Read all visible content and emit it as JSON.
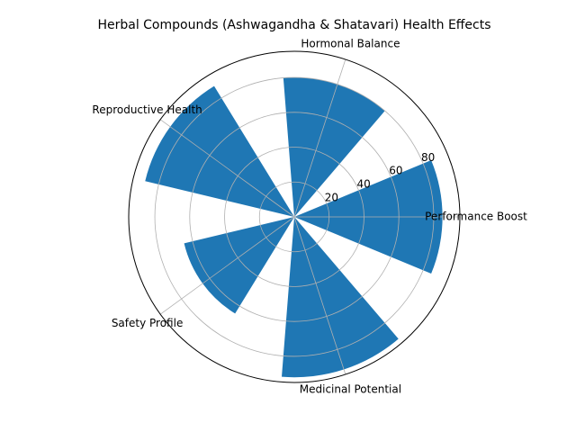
{
  "chart_data": {
    "type": "polar-bar",
    "title": "Herbal Compounds (Ashwagandha & Shatavari) Health Effects",
    "categories": [
      "Performance Boost",
      "Hormonal Balance",
      "Reproductive Health",
      "Safety Profile",
      "Medicinal Potential"
    ],
    "values": [
      85,
      80,
      88,
      65,
      92
    ],
    "color": "#1f77b4",
    "ylim": [
      0,
      95
    ],
    "yticks": [
      20,
      40,
      60,
      80
    ],
    "grid": true
  }
}
